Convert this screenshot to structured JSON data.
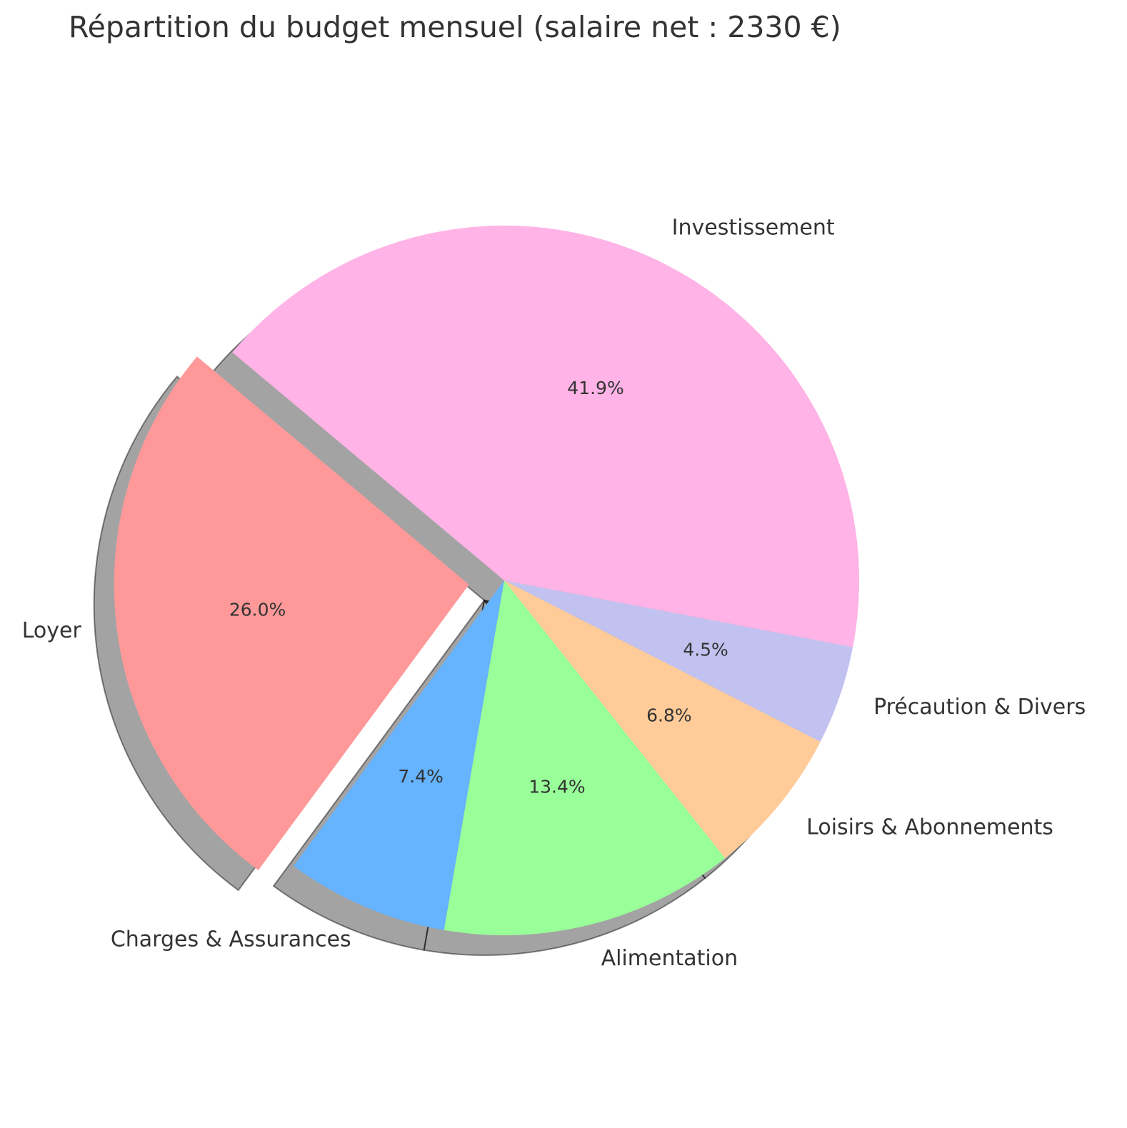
{
  "chart_data": {
    "type": "pie",
    "title": "Répartition du budget mensuel (salaire net : 2330 €)",
    "slices": [
      {
        "label": "Loyer",
        "value": 26.0,
        "display": "26.0%",
        "color": "#ff9999",
        "exploded": true
      },
      {
        "label": "Charges & Assurances",
        "value": 7.4,
        "display": "7.4%",
        "color": "#66b3ff",
        "exploded": false
      },
      {
        "label": "Alimentation",
        "value": 13.4,
        "display": "13.4%",
        "color": "#99ff99",
        "exploded": false
      },
      {
        "label": "Loisirs & Abonnements",
        "value": 6.8,
        "display": "6.8%",
        "color": "#ffcc99",
        "exploded": false
      },
      {
        "label": "Précaution & Divers",
        "value": 4.5,
        "display": "4.5%",
        "color": "#c2c2f0",
        "exploded": false
      },
      {
        "label": "Investissement",
        "value": 41.9,
        "display": "41.9%",
        "color": "#ffb3e6",
        "exploded": false
      }
    ],
    "start_angle_deg": 140,
    "direction": "counterclockwise",
    "shadow": true
  }
}
